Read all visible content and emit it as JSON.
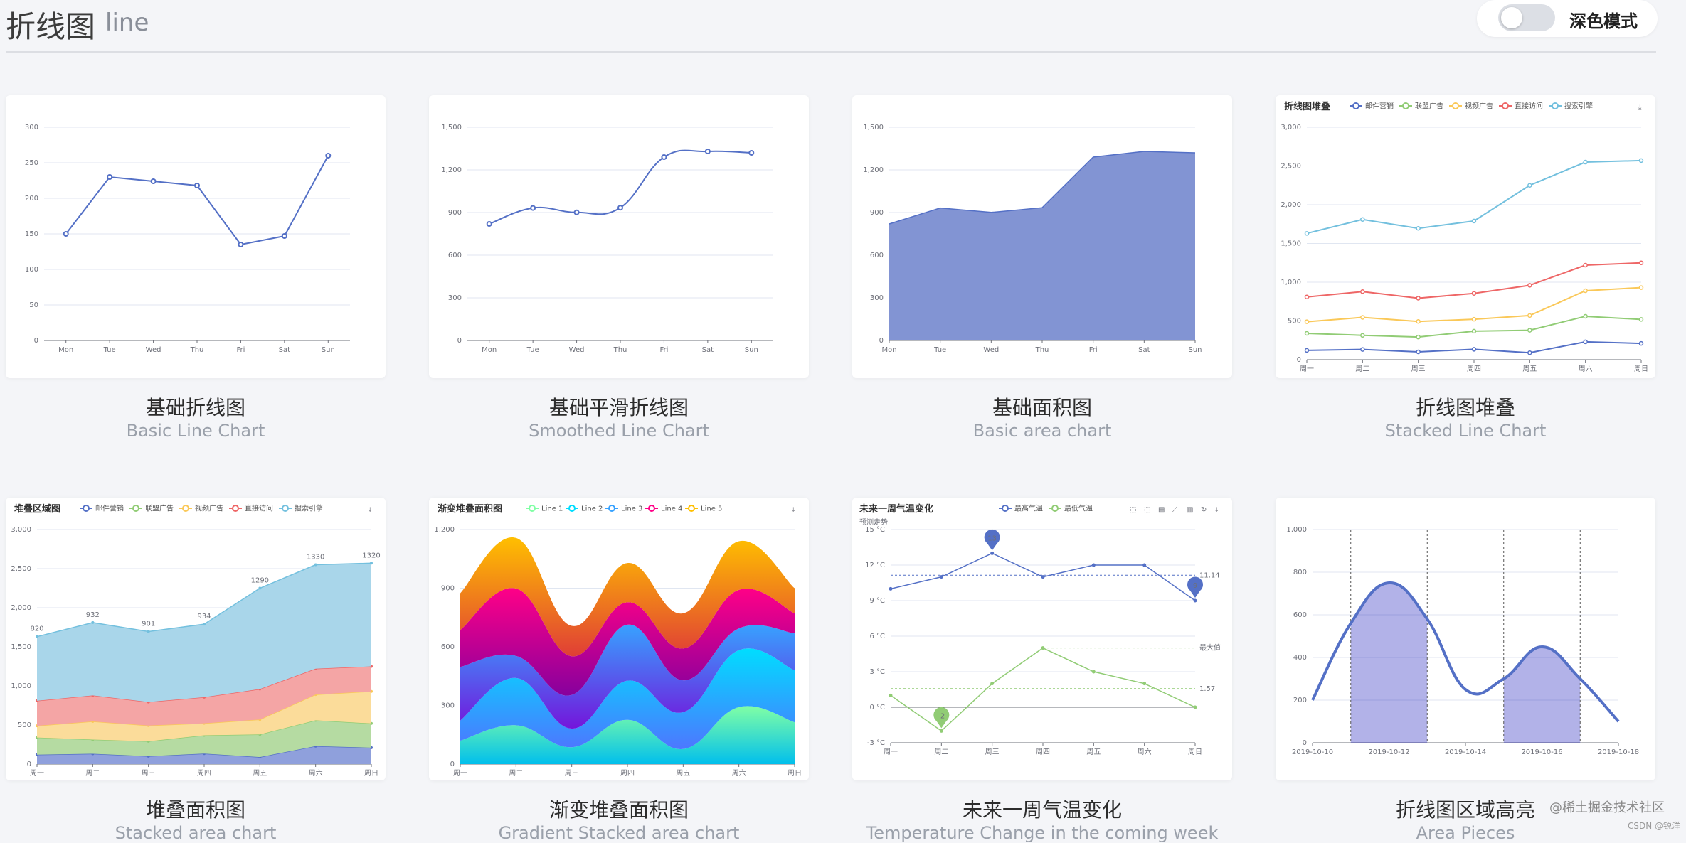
{
  "header": {
    "title": "折线图",
    "subtitle": "line",
    "dark_mode_label": "深色模式"
  },
  "watermark": "@稀土掘金技术社区",
  "watermark2": "CSDN @锐洋",
  "charts": [
    {
      "caption_cn": "基础折线图",
      "caption_en": "Basic Line Chart"
    },
    {
      "caption_cn": "基础平滑折线图",
      "caption_en": "Smoothed Line Chart"
    },
    {
      "caption_cn": "基础面积图",
      "caption_en": "Basic area chart"
    },
    {
      "caption_cn": "折线图堆叠",
      "caption_en": "Stacked Line Chart"
    },
    {
      "caption_cn": "堆叠面积图",
      "caption_en": "Stacked area chart"
    },
    {
      "caption_cn": "渐变堆叠面积图",
      "caption_en": "Gradient Stacked area chart"
    },
    {
      "caption_cn": "未来一周气温变化",
      "caption_en": "Temperature Change in the coming week"
    },
    {
      "caption_cn": "折线图区域高亮",
      "caption_en": "Area Pieces"
    }
  ],
  "chart_data": [
    {
      "type": "line",
      "title": "",
      "categories": [
        "Mon",
        "Tue",
        "Wed",
        "Thu",
        "Fri",
        "Sat",
        "Sun"
      ],
      "values": [
        150,
        230,
        224,
        218,
        135,
        147,
        260
      ],
      "ylim": [
        0,
        300
      ],
      "yticks": [
        "0",
        "50",
        "100",
        "150",
        "200",
        "250",
        "300"
      ],
      "color": "#5470c6"
    },
    {
      "type": "line",
      "smooth": true,
      "title": "",
      "categories": [
        "Mon",
        "Tue",
        "Wed",
        "Thu",
        "Fri",
        "Sat",
        "Sun"
      ],
      "values": [
        820,
        932,
        901,
        934,
        1290,
        1330,
        1320
      ],
      "ylim": [
        0,
        1500
      ],
      "yticks": [
        "0",
        "300",
        "600",
        "900",
        "1,200",
        "1,500"
      ],
      "color": "#5470c6"
    },
    {
      "type": "area",
      "title": "",
      "categories": [
        "Mon",
        "Tue",
        "Wed",
        "Thu",
        "Fri",
        "Sat",
        "Sun"
      ],
      "values": [
        820,
        932,
        901,
        934,
        1290,
        1330,
        1320
      ],
      "ylim": [
        0,
        1500
      ],
      "yticks": [
        "0",
        "300",
        "600",
        "900",
        "1,200",
        "1,500"
      ],
      "color": "#5470c6"
    },
    {
      "type": "line",
      "stacked": true,
      "title": "折线图堆叠",
      "categories": [
        "周一",
        "周二",
        "周三",
        "周四",
        "周五",
        "周六",
        "周日"
      ],
      "ylim": [
        0,
        3000
      ],
      "yticks": [
        "0",
        "500",
        "1,000",
        "1,500",
        "2,000",
        "2,500",
        "3,000"
      ],
      "series": [
        {
          "name": "邮件营销",
          "color": "#5470c6",
          "values": [
            120,
            132,
            101,
            134,
            90,
            230,
            210
          ]
        },
        {
          "name": "联盟广告",
          "color": "#91cc75",
          "values": [
            220,
            182,
            191,
            234,
            290,
            330,
            310
          ]
        },
        {
          "name": "视频广告",
          "color": "#fac858",
          "values": [
            150,
            232,
            201,
            154,
            190,
            330,
            410
          ]
        },
        {
          "name": "直接访问",
          "color": "#ee6666",
          "values": [
            320,
            332,
            301,
            334,
            390,
            330,
            320
          ]
        },
        {
          "name": "搜索引擎",
          "color": "#73c0de",
          "values": [
            820,
            932,
            901,
            934,
            1290,
            1330,
            1320
          ]
        }
      ]
    },
    {
      "type": "area",
      "stacked": true,
      "title": "堆叠区域图",
      "categories": [
        "周一",
        "周二",
        "周三",
        "周四",
        "周五",
        "周六",
        "周日"
      ],
      "ylim": [
        0,
        3000
      ],
      "yticks": [
        "0",
        "500",
        "1,000",
        "1,500",
        "2,000",
        "2,500",
        "3,000"
      ],
      "series": [
        {
          "name": "邮件营销",
          "color": "#5470c6",
          "values": [
            120,
            132,
            101,
            134,
            90,
            230,
            210
          ]
        },
        {
          "name": "联盟广告",
          "color": "#91cc75",
          "values": [
            220,
            182,
            191,
            234,
            290,
            330,
            310
          ]
        },
        {
          "name": "视频广告",
          "color": "#fac858",
          "values": [
            150,
            232,
            201,
            154,
            190,
            330,
            410
          ]
        },
        {
          "name": "直接访问",
          "color": "#ee6666",
          "values": [
            320,
            332,
            301,
            334,
            390,
            330,
            320
          ]
        },
        {
          "name": "搜索引擎",
          "color": "#73c0de",
          "values": [
            820,
            932,
            901,
            934,
            1290,
            1330,
            1320
          ]
        }
      ],
      "top_labels": [
        "820",
        "932",
        "901",
        "934",
        "1290",
        "1330",
        "1320"
      ]
    },
    {
      "type": "area",
      "stacked": true,
      "smooth": true,
      "title": "渐变堆叠面积图",
      "categories": [
        "周一",
        "周二",
        "周三",
        "周四",
        "周五",
        "周六",
        "周日"
      ],
      "ylim": [
        0,
        1400
      ],
      "yticks": [
        "0",
        "300",
        "600",
        "900",
        "1,200"
      ],
      "series": [
        {
          "name": "Line 1",
          "color": "#80ffa5",
          "color2": "#01bfec",
          "values": [
            140,
            232,
            101,
            264,
            90,
            340,
            250
          ]
        },
        {
          "name": "Line 2",
          "color": "#00ddff",
          "color2": "#4d77ff",
          "values": [
            120,
            282,
            111,
            234,
            220,
            340,
            310
          ]
        },
        {
          "name": "Line 3",
          "color": "#37a2ff",
          "color2": "#7415db",
          "values": [
            320,
            132,
            201,
            334,
            190,
            130,
            220
          ]
        },
        {
          "name": "Line 4",
          "color": "#ff0087",
          "color2": "#87009d",
          "values": [
            220,
            402,
            231,
            134,
            190,
            230,
            120
          ]
        },
        {
          "name": "Line 5",
          "color": "#ffbf00",
          "color2": "#e03e36",
          "values": [
            220,
            302,
            181,
            234,
            210,
            290,
            150
          ]
        }
      ]
    },
    {
      "type": "line",
      "title": "未来一周气温变化",
      "yunit": "预测走势",
      "categories": [
        "周一",
        "周二",
        "周三",
        "周四",
        "周五",
        "周六",
        "周日"
      ],
      "ylim": [
        -3,
        15
      ],
      "yticks": [
        "-3 °C",
        "0 °C",
        "3 °C",
        "6 °C",
        "9 °C",
        "12 °C",
        "15 °C"
      ],
      "series": [
        {
          "name": "最高气温",
          "color": "#5470c6",
          "values": [
            10,
            11,
            13,
            11,
            12,
            12,
            9
          ]
        },
        {
          "name": "最低气温",
          "color": "#91cc75",
          "values": [
            1,
            -2,
            2,
            5,
            3,
            2,
            0
          ]
        }
      ],
      "markers": [
        {
          "label": "13",
          "series": 0,
          "index": 2
        },
        {
          "label": "9",
          "series": 0,
          "index": 6
        },
        {
          "label": "-2",
          "series": 1,
          "index": 1
        }
      ],
      "markline_labels": [
        "11.14",
        "最大值",
        "1.57"
      ]
    },
    {
      "type": "line",
      "smooth": true,
      "title": "",
      "categories": [
        "2019-10-10",
        "2019-10-12",
        "2019-10-14",
        "2019-10-16",
        "2019-10-18"
      ],
      "x": [
        "2019-10-10",
        "2019-10-11",
        "2019-10-12",
        "2019-10-13",
        "2019-10-14",
        "2019-10-15",
        "2019-10-16",
        "2019-10-17",
        "2019-10-18"
      ],
      "values": [
        200,
        560,
        750,
        580,
        250,
        300,
        450,
        300,
        100
      ],
      "ylim": [
        0,
        1000
      ],
      "yticks": [
        "0",
        "200",
        "400",
        "600",
        "800",
        "1,000"
      ],
      "pieces": [
        [
          "2019-10-11",
          "2019-10-13"
        ],
        [
          "2019-10-15",
          "2019-10-17"
        ]
      ],
      "color": "#5470c6",
      "piece_color": "rgba(0,0,180,0.3)"
    }
  ]
}
